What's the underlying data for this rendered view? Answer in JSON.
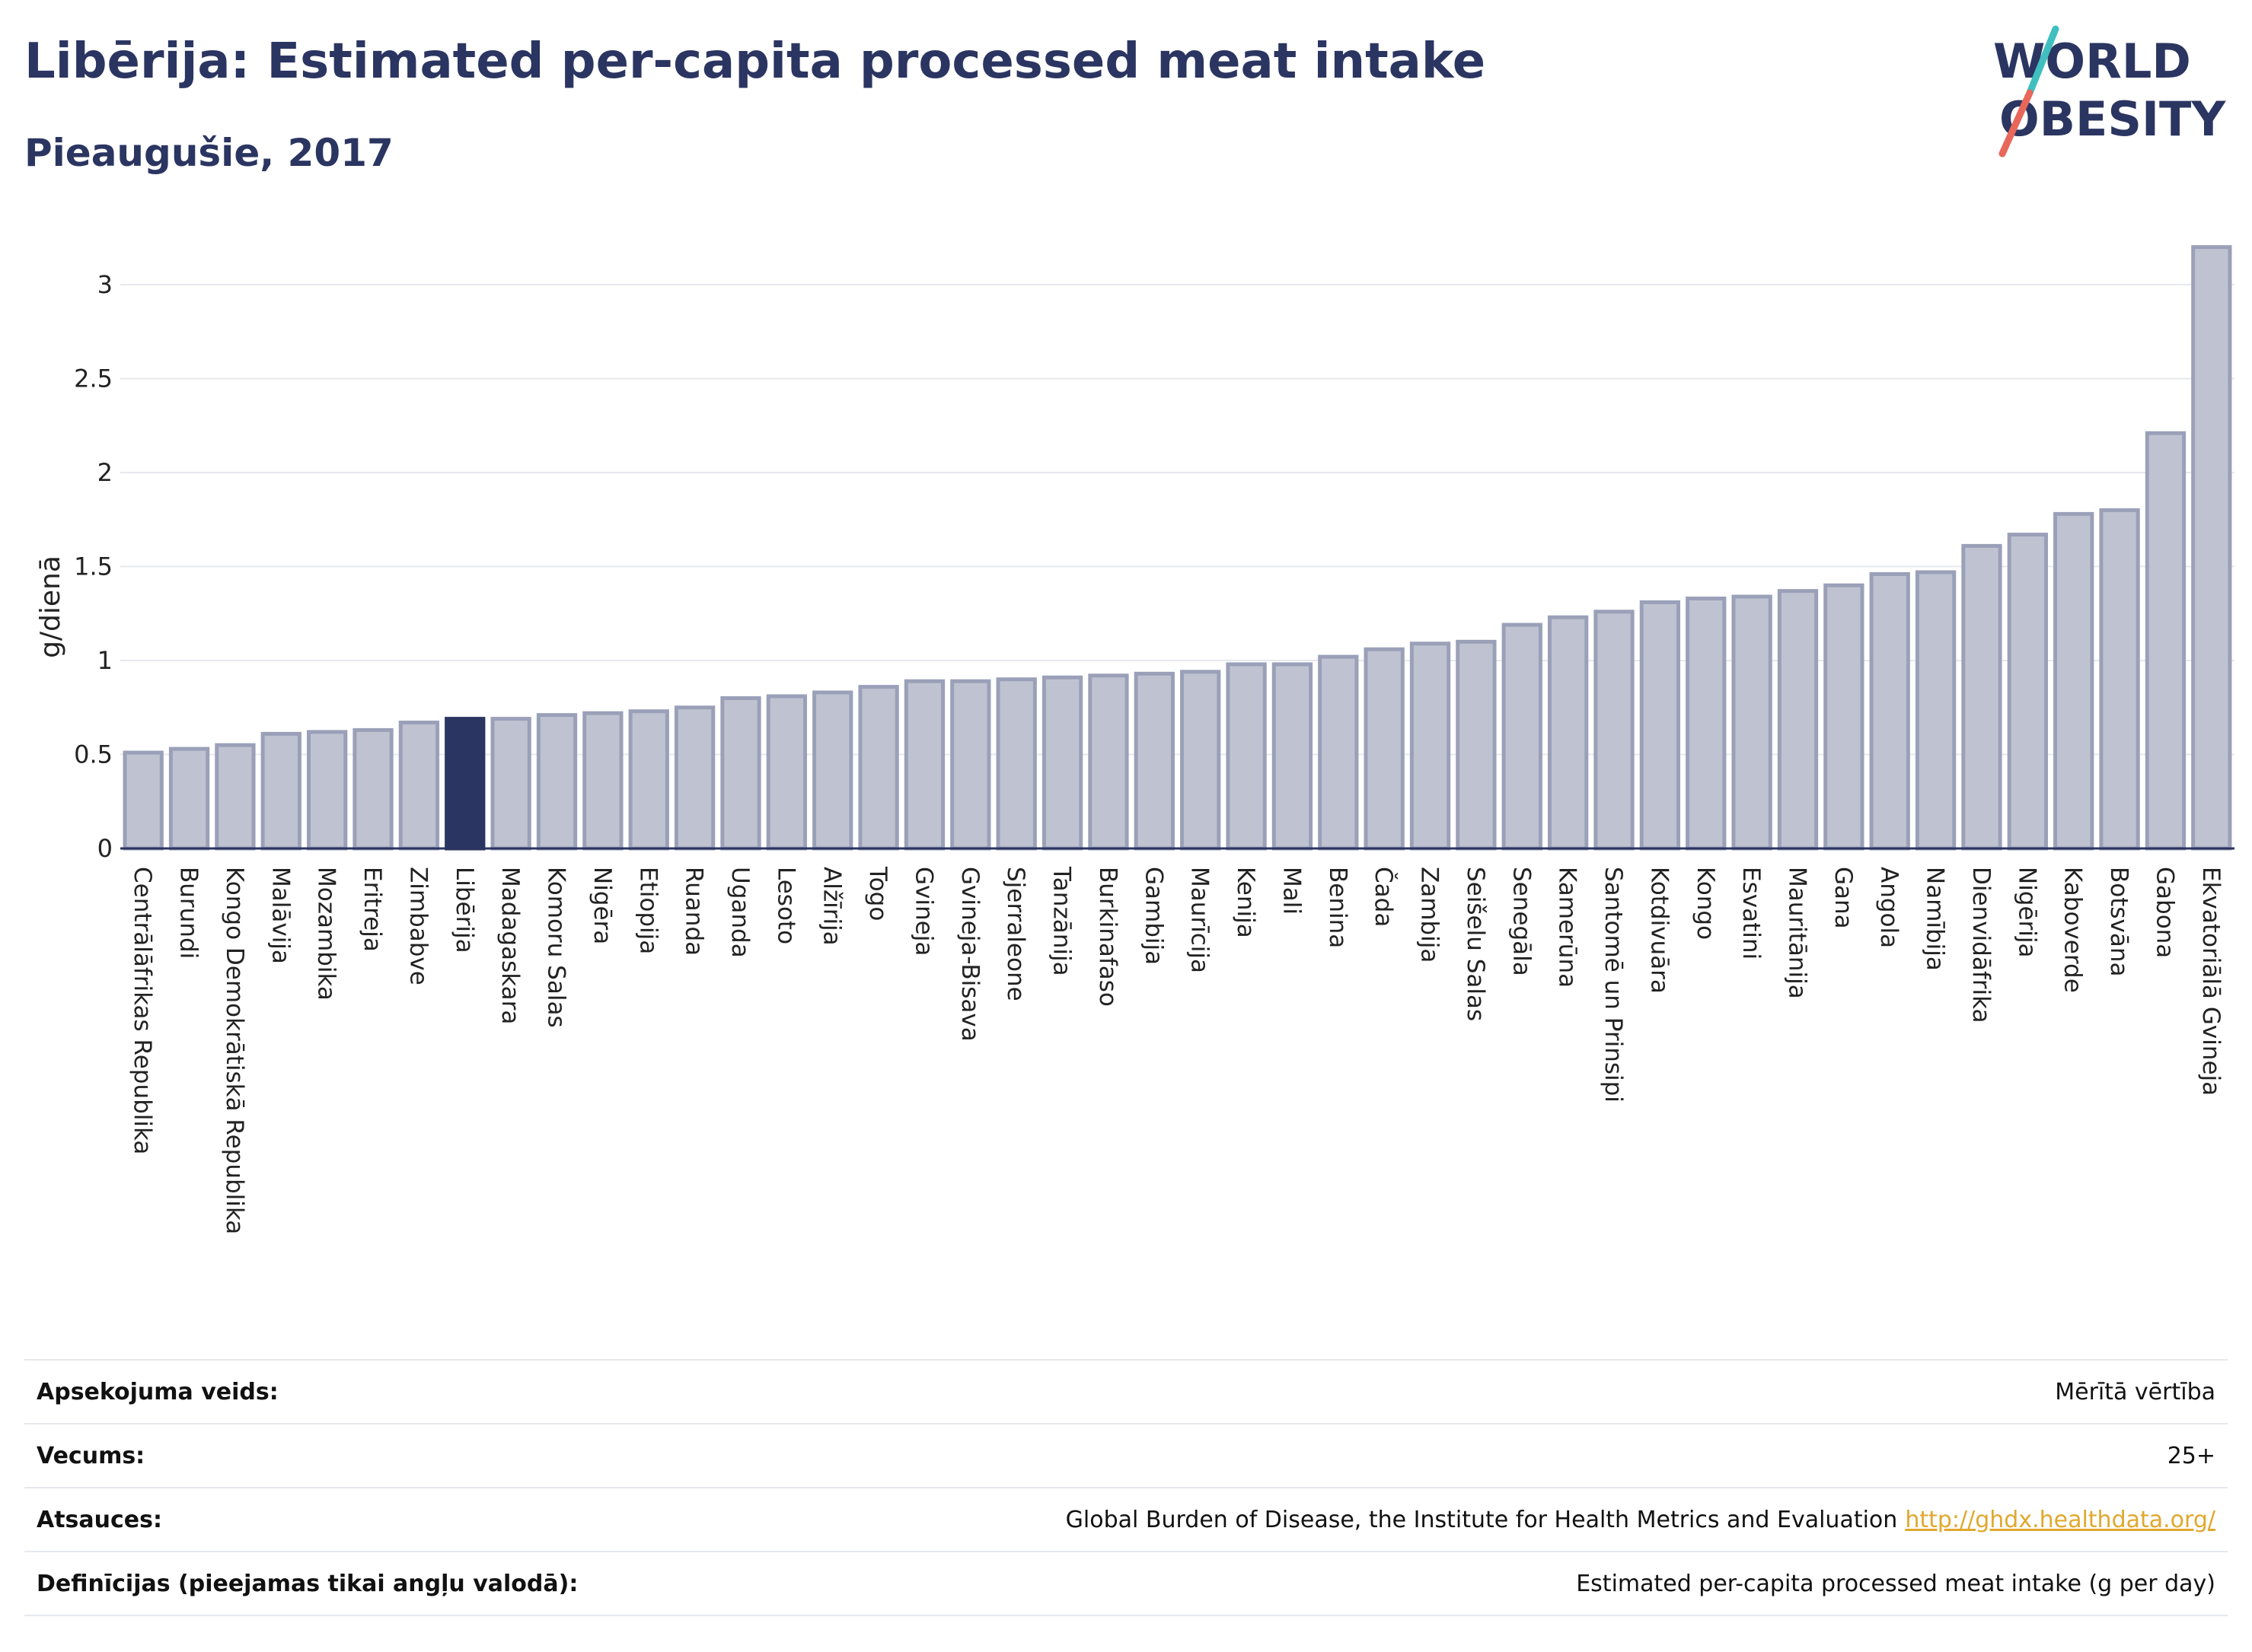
{
  "header": {
    "title": "Libērija: Estimated per-capita processed meat intake",
    "subtitle": "Pieaugušie, 2017"
  },
  "logo": {
    "line1": "WORLD",
    "line2": "OBESITY",
    "colors": {
      "text": "#2b3561",
      "slash_top": "#3fbfbf",
      "slash_bottom": "#e8675a"
    }
  },
  "chart_data": {
    "type": "bar",
    "ylabel": "g/dienā",
    "ylim": [
      0,
      3.3
    ],
    "yticks": [
      0,
      0.5,
      1,
      1.5,
      2,
      2.5,
      3
    ],
    "ytick_labels": [
      "0",
      "0.5",
      "1",
      "1.5",
      "2",
      "2.5",
      "3"
    ],
    "grid": true,
    "highlight": "Libērija",
    "colors": {
      "bar": "#bfc3d1",
      "bar_border": "#9aa0b8",
      "highlight": "#2b3561"
    },
    "categories": [
      "Centrālāfrikas Republika",
      "Burundi",
      "Kongo Demokrātiskā Republika",
      "Malāvija",
      "Mozambika",
      "Eritreja",
      "Zimbabve",
      "Libērija",
      "Madagaskara",
      "Komoru Salas",
      "Nigēra",
      "Etiopija",
      "Ruanda",
      "Uganda",
      "Lesoto",
      "Alžīrija",
      "Togo",
      "Gvineja",
      "Gvineja-Bisava",
      "Sjerraleone",
      "Tanzānija",
      "Burkinafaso",
      "Gambija",
      "Maurīcija",
      "Kenija",
      "Mali",
      "Benina",
      "Čada",
      "Zambija",
      "Seišelu Salas",
      "Senegāla",
      "Kamerūna",
      "Santomē un Prinsipi",
      "Kotdivuāra",
      "Kongo",
      "Esvatini",
      "Mauritānija",
      "Gana",
      "Angola",
      "Namībija",
      "Dienvidāfrika",
      "Nigērija",
      "Kaboverde",
      "Botsvāna",
      "Gabona",
      "Ekvatoriālā Gvineja"
    ],
    "values": [
      0.51,
      0.53,
      0.55,
      0.61,
      0.62,
      0.63,
      0.67,
      0.69,
      0.69,
      0.71,
      0.72,
      0.73,
      0.75,
      0.8,
      0.81,
      0.83,
      0.86,
      0.89,
      0.89,
      0.9,
      0.91,
      0.92,
      0.93,
      0.94,
      0.98,
      0.98,
      1.02,
      1.06,
      1.09,
      1.1,
      1.19,
      1.23,
      1.26,
      1.31,
      1.33,
      1.34,
      1.37,
      1.4,
      1.46,
      1.47,
      1.61,
      1.67,
      1.78,
      1.8,
      2.21,
      3.2
    ]
  },
  "meta": {
    "rows": [
      {
        "label": "Apsekojuma veids:",
        "value": "Mērītā vērtība"
      },
      {
        "label": "Vecums:",
        "value": "25+"
      },
      {
        "label": "Atsauces:",
        "value": "Global Burden of Disease, the Institute for Health Metrics and Evaluation",
        "link": "http://ghdx.healthdata.org/"
      },
      {
        "label": "Definīcijas (pieejamas tikai angļu valodā):",
        "value": "Estimated per-capita processed meat intake (g per day)"
      }
    ]
  }
}
